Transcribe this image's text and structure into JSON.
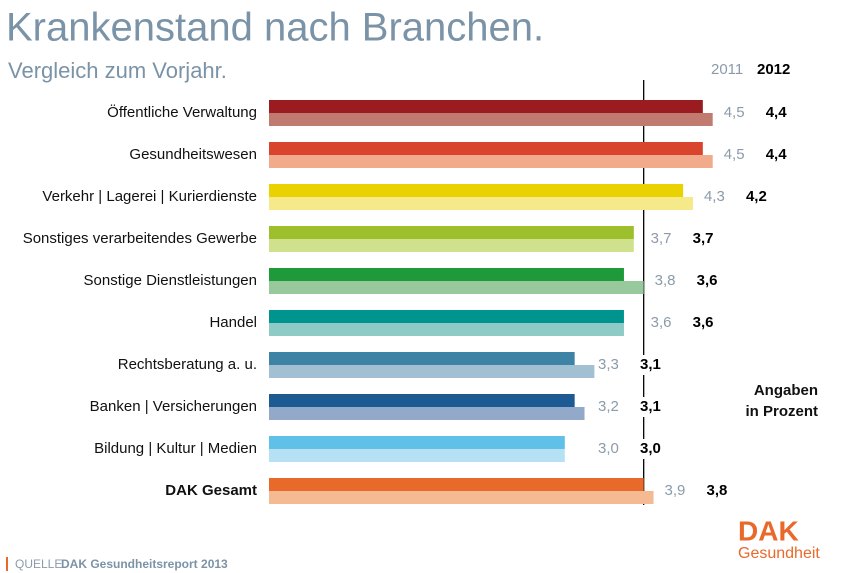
{
  "chart_data": {
    "type": "bar",
    "orientation": "horizontal",
    "title": "Krankenstand nach Branchen.",
    "subtitle": "Vergleich zum Vorjahr.",
    "categories": [
      "Öffentliche Verwaltung",
      "Gesundheitswesen",
      "Verkehr | Lagerei | Kurierdienste",
      "Sonstiges verarbeitendes Gewerbe",
      "Sonstige Dienstleistungen",
      "Handel",
      "Rechtsberatung a. u.",
      "Banken | Versicherungen",
      "Bildung | Kultur | Medien",
      "DAK Gesamt"
    ],
    "series": [
      {
        "name": "2011",
        "values": [
          4.5,
          4.5,
          4.3,
          3.7,
          3.8,
          3.6,
          3.3,
          3.2,
          3.0,
          3.9
        ],
        "value_labels": [
          "4,5",
          "4,5",
          "4,3",
          "3,7",
          "3,8",
          "3,6",
          "3,3",
          "3,2",
          "3,0",
          "3,9"
        ],
        "colors": [
          "#c07a6f",
          "#f2aa8c",
          "#f6e98a",
          "#d0e18e",
          "#97c99c",
          "#8ecac6",
          "#a3bfd2",
          "#93a9c9",
          "#b6e1f4",
          "#f6ba92"
        ]
      },
      {
        "name": "2012",
        "values": [
          4.4,
          4.4,
          4.2,
          3.7,
          3.6,
          3.6,
          3.1,
          3.1,
          3.0,
          3.8
        ],
        "value_labels": [
          "4,4",
          "4,4",
          "4,2",
          "3,7",
          "3,6",
          "3,6",
          "3,1",
          "3,1",
          "3,0",
          "3,8"
        ],
        "colors": [
          "#9b1c20",
          "#d9452c",
          "#ead200",
          "#9cbf2b",
          "#1f9a3b",
          "#00948e",
          "#3c83a6",
          "#1d5a93",
          "#5fc0e8",
          "#e9692a"
        ]
      }
    ],
    "note": [
      "Angaben",
      "in Prozent"
    ],
    "source_label": "QUELLE",
    "source": "DAK Gesundheitsreport 2013"
  },
  "logo": {
    "mark": "DAK",
    "text": "Gesundheit"
  }
}
